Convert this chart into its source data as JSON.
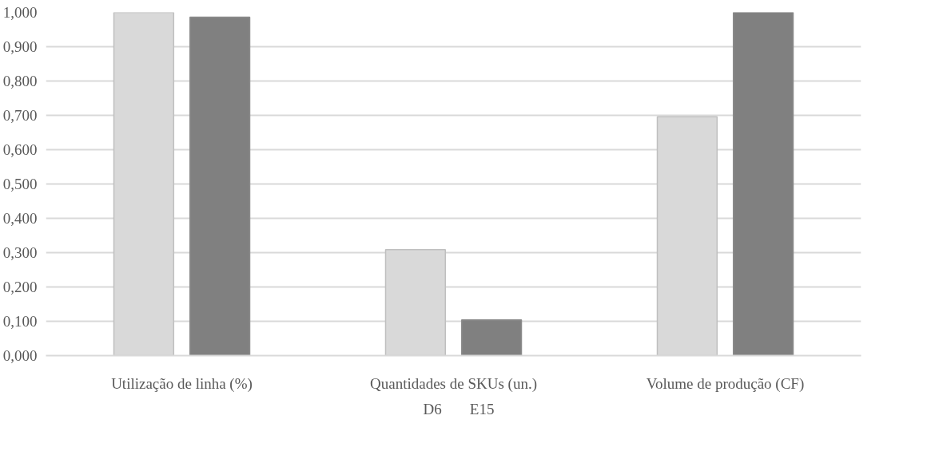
{
  "chart_data": {
    "type": "bar",
    "categories": [
      "Utilização de linha (%)",
      "Quantidades de SKUs (un.)",
      "Volume de produção (CF)"
    ],
    "series": [
      {
        "name": "D6",
        "color": "#d9d9d9",
        "values": [
          1.0,
          0.309,
          0.696
        ]
      },
      {
        "name": "E15",
        "color": "#808080",
        "values": [
          0.986,
          0.104,
          1.0
        ]
      }
    ],
    "ylim": [
      0,
      1
    ],
    "yticks": [
      {
        "value": 0,
        "label": "0,000"
      },
      {
        "value": 0.1,
        "label": "0,100"
      },
      {
        "value": 0.2,
        "label": "0,200"
      },
      {
        "value": 0.3,
        "label": "0,300"
      },
      {
        "value": 0.4,
        "label": "0,400"
      },
      {
        "value": 0.5,
        "label": "0,500"
      },
      {
        "value": 0.6,
        "label": "0,600"
      },
      {
        "value": 0.7,
        "label": "0,700"
      },
      {
        "value": 0.8,
        "label": "0,800"
      },
      {
        "value": 0.9,
        "label": "0,900"
      },
      {
        "value": 1,
        "label": "1,000"
      }
    ],
    "grid": "y",
    "legend": "bottom"
  }
}
